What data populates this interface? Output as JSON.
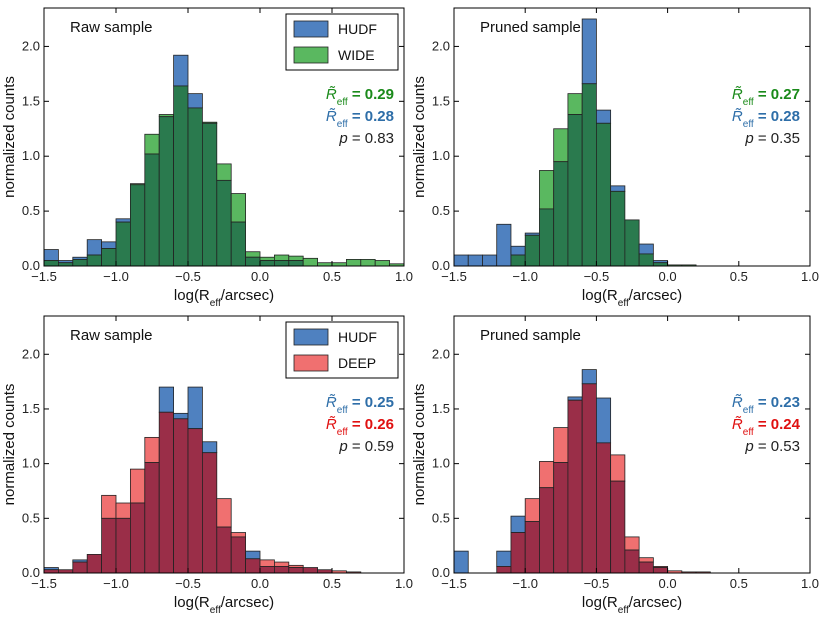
{
  "chart_data": [
    {
      "type": "bar",
      "title": "Raw sample",
      "xlabel": "log(R_eff/arcsec)",
      "ylabel": "normalized counts",
      "xlim": [
        -1.5,
        1.0
      ],
      "ylim": [
        0,
        2.35
      ],
      "xticks": [
        "−1.5",
        "−1.0",
        "−0.5",
        "0.0",
        "0.5",
        "1.0"
      ],
      "yticks": [
        "0.0",
        "0.5",
        "1.0",
        "1.5",
        "2.0"
      ],
      "bin_start": -1.5,
      "bin_width": 0.1,
      "series": [
        {
          "name": "HUDF",
          "color": "#4f81c0",
          "values": [
            0.15,
            0.05,
            0.08,
            0.24,
            0.22,
            0.43,
            0.74,
            1.02,
            1.36,
            1.92,
            1.57,
            1.3,
            0.78,
            0.4,
            0.08,
            0.05,
            0.05,
            0.05,
            0,
            0,
            0,
            0,
            0,
            0,
            0
          ]
        },
        {
          "name": "WIDE",
          "color": "#5ab860",
          "values": [
            0.05,
            0.03,
            0.06,
            0.1,
            0.16,
            0.4,
            0.75,
            1.2,
            1.38,
            1.64,
            1.44,
            1.31,
            0.93,
            0.66,
            0.13,
            0.08,
            0.1,
            0.09,
            0.07,
            0.03,
            0.03,
            0.06,
            0.06,
            0.05,
            0.02
          ]
        }
      ],
      "legend": [
        "HUDF",
        "WIDE"
      ],
      "stats": [
        {
          "label": "R̃",
          "sub": "eff",
          "value": "= 0.29",
          "color": "#1a8a1a"
        },
        {
          "label": "R̃",
          "sub": "eff",
          "value": "= 0.28",
          "color": "#2e6ea8"
        },
        {
          "label": "p",
          "sub": "",
          "value": "= 0.83",
          "color": "#222222"
        }
      ]
    },
    {
      "type": "bar",
      "title": "Pruned sample",
      "xlabel": "log(R_eff/arcsec)",
      "ylabel": "normalized counts",
      "xlim": [
        -1.5,
        1.0
      ],
      "ylim": [
        0,
        2.35
      ],
      "xticks": [
        "−1.5",
        "−1.0",
        "−0.5",
        "0.0",
        "0.5",
        "1.0"
      ],
      "yticks": [
        "0.0",
        "0.5",
        "1.0",
        "1.5",
        "2.0"
      ],
      "bin_start": -1.5,
      "bin_width": 0.1,
      "series": [
        {
          "name": "HUDF",
          "color": "#4f81c0",
          "values": [
            0.1,
            0.1,
            0.1,
            0.38,
            0.18,
            0.3,
            0.52,
            0.95,
            1.38,
            2.25,
            1.42,
            0.73,
            0.42,
            0.2,
            0.05,
            0,
            0,
            0,
            0,
            0,
            0,
            0,
            0,
            0,
            0
          ]
        },
        {
          "name": "WIDE",
          "color": "#5ab860",
          "values": [
            0,
            0,
            0,
            0,
            0.1,
            0.28,
            0.87,
            1.25,
            1.57,
            1.66,
            1.3,
            0.68,
            0.42,
            0.11,
            0.03,
            0.01,
            0.01,
            0,
            0,
            0,
            0,
            0,
            0,
            0,
            0
          ]
        }
      ],
      "legend": [],
      "stats": [
        {
          "label": "R̃",
          "sub": "eff",
          "value": "= 0.27",
          "color": "#1a8a1a"
        },
        {
          "label": "R̃",
          "sub": "eff",
          "value": "= 0.28",
          "color": "#2e6ea8"
        },
        {
          "label": "p",
          "sub": "",
          "value": "= 0.35",
          "color": "#222222"
        }
      ]
    },
    {
      "type": "bar",
      "title": "Raw sample",
      "xlabel": "log(R_eff/arcsec)",
      "ylabel": "normalized counts",
      "xlim": [
        -1.5,
        1.0
      ],
      "ylim": [
        0,
        2.35
      ],
      "xticks": [
        "−1.5",
        "−1.0",
        "−0.5",
        "0.0",
        "0.5",
        "1.0"
      ],
      "yticks": [
        "0.0",
        "0.5",
        "1.0",
        "1.5",
        "2.0"
      ],
      "bin_start": -1.5,
      "bin_width": 0.1,
      "series": [
        {
          "name": "HUDF",
          "color": "#4f81c0",
          "values": [
            0.05,
            0.03,
            0.12,
            0.17,
            0.5,
            0.5,
            0.64,
            1.01,
            1.7,
            1.46,
            1.7,
            1.2,
            0.42,
            0.33,
            0.2,
            0.06,
            0.06,
            0.05,
            0.05,
            0.03,
            0,
            0,
            0,
            0,
            0
          ]
        },
        {
          "name": "DEEP",
          "color": "#f07070",
          "values": [
            0.03,
            0.03,
            0.1,
            0.17,
            0.71,
            0.64,
            0.95,
            1.24,
            1.47,
            1.41,
            1.32,
            1.1,
            0.68,
            0.37,
            0.13,
            0.12,
            0.1,
            0.07,
            0.05,
            0.03,
            0.02,
            0.01,
            0,
            0,
            0
          ]
        }
      ],
      "legend": [
        "HUDF",
        "DEEP"
      ],
      "stats": [
        {
          "label": "R̃",
          "sub": "eff",
          "value": "= 0.25",
          "color": "#2e6ea8"
        },
        {
          "label": "R̃",
          "sub": "eff",
          "value": "= 0.26",
          "color": "#e01010"
        },
        {
          "label": "p",
          "sub": "",
          "value": "= 0.59",
          "color": "#222222"
        }
      ]
    },
    {
      "type": "bar",
      "title": "Pruned sample",
      "xlabel": "log(R_eff/arcsec)",
      "ylabel": "normalized counts",
      "xlim": [
        -1.5,
        1.0
      ],
      "ylim": [
        0,
        2.35
      ],
      "xticks": [
        "−1.5",
        "−1.0",
        "−0.5",
        "0.0",
        "0.5",
        "1.0"
      ],
      "yticks": [
        "0.0",
        "0.5",
        "1.0",
        "1.5",
        "2.0"
      ],
      "bin_start": -1.5,
      "bin_width": 0.1,
      "series": [
        {
          "name": "HUDF",
          "color": "#4f81c0",
          "values": [
            0.2,
            0,
            0,
            0.2,
            0.52,
            0.47,
            0.78,
            1.01,
            1.61,
            1.86,
            1.6,
            0.84,
            0.21,
            0.1,
            0.05,
            0,
            0,
            0,
            0,
            0,
            0,
            0,
            0,
            0,
            0
          ]
        },
        {
          "name": "DEEP",
          "color": "#f07070",
          "values": [
            0,
            0,
            0,
            0.06,
            0.37,
            0.68,
            1.02,
            1.33,
            1.58,
            1.73,
            1.19,
            1.08,
            0.33,
            0.14,
            0.06,
            0.02,
            0.01,
            0.01,
            0,
            0,
            0,
            0,
            0,
            0,
            0
          ]
        }
      ],
      "legend": [],
      "stats": [
        {
          "label": "R̃",
          "sub": "eff",
          "value": "= 0.23",
          "color": "#2e6ea8"
        },
        {
          "label": "R̃",
          "sub": "eff",
          "value": "= 0.24",
          "color": "#e01010"
        },
        {
          "label": "p",
          "sub": "",
          "value": "= 0.53",
          "color": "#222222"
        }
      ]
    }
  ]
}
